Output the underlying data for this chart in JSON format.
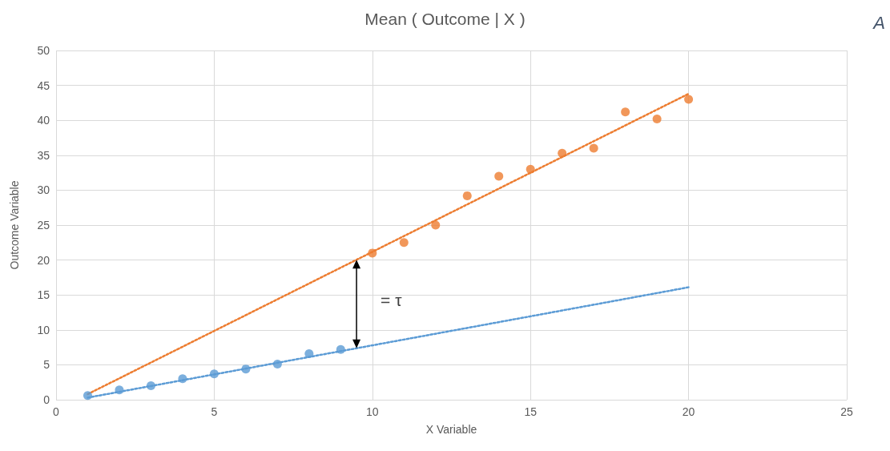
{
  "chart_data": {
    "type": "scatter",
    "title": "Mean ( Outcome | X )",
    "xlabel": "X Variable",
    "ylabel": "Outcome Variable",
    "annotations": [
      "= τ",
      "A"
    ],
    "series": [
      {
        "color": "#5b9bd5",
        "marker": "circle",
        "x": [
          1,
          2,
          3,
          4,
          5,
          6,
          7,
          8,
          9
        ],
        "values": [
          0.6,
          1.4,
          2,
          3,
          3.7,
          4.4,
          5.1,
          6.6,
          7.2
        ]
      },
      {
        "color": "#ed7d31",
        "marker": "circle",
        "x": [
          10,
          11,
          12,
          13,
          14,
          15,
          16,
          17,
          18,
          19,
          20
        ],
        "values": [
          21,
          22.5,
          25,
          29.2,
          32,
          33,
          35.3,
          36,
          41.2,
          40.2,
          43
        ]
      },
      {
        "type": "line",
        "color": "#5b9bd5",
        "line_style": "dotted",
        "marker": "none",
        "x": [
          1,
          20
        ],
        "values": [
          0.3,
          16.1
        ]
      },
      {
        "type": "line",
        "color": "#ed7d31",
        "line_style": "dotted",
        "marker": "none",
        "x": [
          1,
          20
        ],
        "values": [
          0.8,
          43.8
        ]
      }
    ],
    "xlim": [
      0,
      25
    ],
    "xticks": [
      0,
      5,
      10,
      15,
      20,
      25
    ],
    "ylim": [
      0,
      50
    ],
    "yticks": [
      0,
      5,
      10,
      15,
      20,
      25,
      30,
      35,
      40,
      45,
      50
    ],
    "grid": true
  }
}
